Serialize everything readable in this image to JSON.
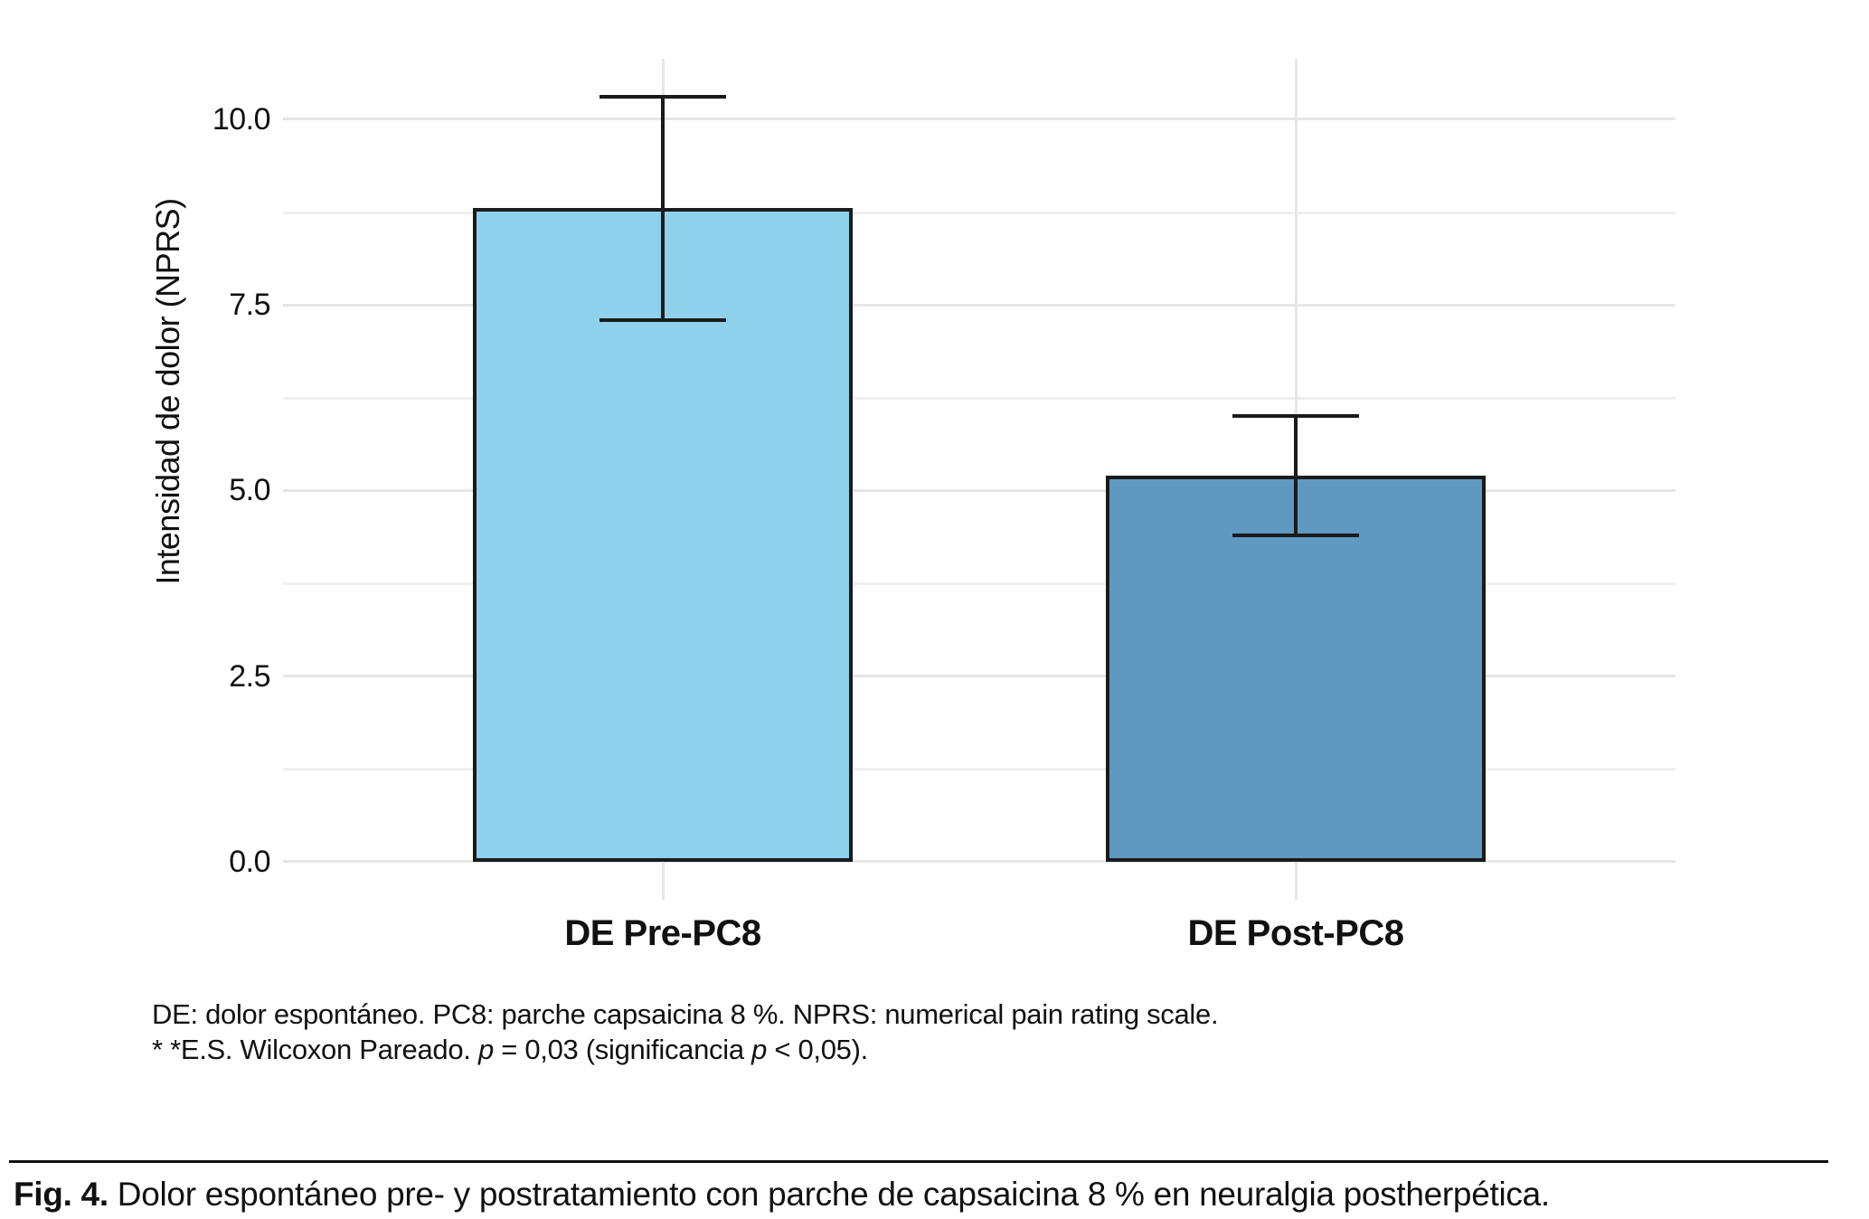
{
  "figure": {
    "caption_bold": "Fig. 4.",
    "caption_text": " Dolor espontáneo pre- y postratamiento con parche de capsaicina 8 % en neuralgia postherpética.",
    "footnote_line1": "DE: dolor espontáneo. PC8: parche capsaicina 8 %. NPRS: numerical pain rating scale.",
    "footnote_line2_parts": [
      {
        "text": "* *E.S. Wilcoxon Pareado. ",
        "italic": false
      },
      {
        "text": "p",
        "italic": true
      },
      {
        "text": " = 0,03 (significancia ",
        "italic": false
      },
      {
        "text": "p",
        "italic": true
      },
      {
        "text": " < 0,05).",
        "italic": false
      }
    ]
  },
  "chart_data": {
    "type": "bar",
    "categories": [
      "DE Pre-PC8",
      "DE Post-PC8"
    ],
    "values": [
      8.8,
      5.2
    ],
    "error_bars": {
      "low": [
        7.3,
        4.4
      ],
      "high": [
        10.3,
        6.0
      ]
    },
    "bar_colors": [
      "#8ED1ED",
      "#5F99C2"
    ],
    "bar_edge_color": "#1a1a1a",
    "title": "",
    "xlabel": "",
    "ylabel": "Intensidad de dolor (NPRS)",
    "yticks": [
      0.0,
      2.5,
      5.0,
      7.5,
      10.0
    ],
    "ytick_labels": [
      "0.0",
      "2.5",
      "5.0",
      "7.5",
      "10.0"
    ],
    "minor_yticks": [
      1.25,
      3.75,
      6.25,
      8.75
    ],
    "ylim": [
      -0.513,
      10.816
    ],
    "grid": true,
    "gridline_color_major": "#e6e6e6",
    "gridline_color_minor": "#efefef",
    "background": "#ffffff",
    "legend": false
  }
}
